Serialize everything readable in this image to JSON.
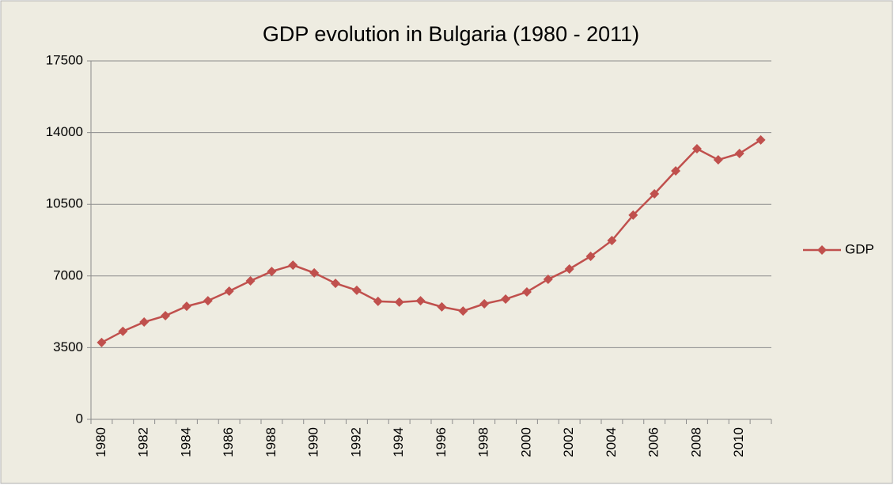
{
  "chart_data": {
    "type": "line",
    "title": "GDP evolution in Bulgaria (1980 - 2011)",
    "categories": [
      "1980",
      null,
      "1982",
      null,
      "1984",
      null,
      "1986",
      null,
      "1988",
      null,
      "1990",
      null,
      "1992",
      null,
      "1994",
      null,
      "1996",
      null,
      "1998",
      null,
      "2000",
      null,
      "2002",
      null,
      "2004",
      null,
      "2006",
      null,
      "2008",
      null,
      "2010",
      null
    ],
    "series": [
      {
        "name": "GDP",
        "color": "#c0504d",
        "values": [
          3750,
          4300,
          4750,
          5060,
          5520,
          5790,
          6260,
          6760,
          7220,
          7530,
          7150,
          6640,
          6300,
          5760,
          5720,
          5790,
          5490,
          5290,
          5640,
          5870,
          6220,
          6840,
          7340,
          7960,
          8730,
          9970,
          11010,
          12130,
          13210,
          12670,
          12980,
          13640
        ]
      }
    ],
    "ylim": [
      0,
      17500
    ],
    "yticks": [
      0,
      3500,
      7000,
      10500,
      14000,
      17500
    ],
    "grid": true,
    "legend": "right"
  }
}
